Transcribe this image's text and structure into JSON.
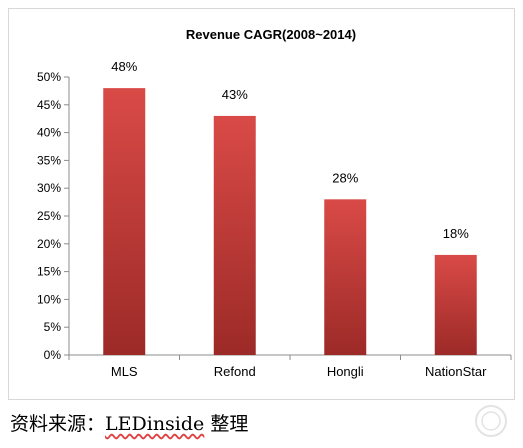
{
  "chart_data": {
    "type": "bar",
    "title": "Revenue CAGR(2008~2014)",
    "categories": [
      "MLS",
      "Refond",
      "Hongli",
      "NationStar"
    ],
    "values": [
      48,
      43,
      28,
      18
    ],
    "data_labels": [
      "48%",
      "43%",
      "28%",
      "18%"
    ],
    "xlabel": "",
    "ylabel": "",
    "ylim": [
      0,
      50
    ],
    "y_ticks": [
      "0%",
      "5%",
      "10%",
      "15%",
      "20%",
      "25%",
      "30%",
      "35%",
      "40%",
      "45%",
      "50%"
    ],
    "grid": false,
    "legend": "none",
    "bar_color_light": "#d94a47",
    "bar_color_dark": "#9c2a27"
  },
  "source": {
    "prefix": "资料来源：",
    "brand": "LEDinside",
    "suffix": " 整理"
  },
  "colors": {
    "axis": "#8c8c8c",
    "text": "#000000",
    "source_underline": "#e04040"
  }
}
